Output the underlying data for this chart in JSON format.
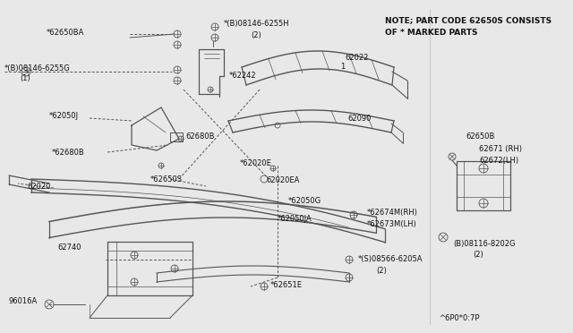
{
  "background_color": "#e8e8e8",
  "line_color": "#555555",
  "text_color": "#111111",
  "note_line1": "NOTE; PART CODE 62650S CONSISTS",
  "note_line2": "OF * MARKED PARTS",
  "footer_text": "^6P0*0:7P",
  "fig_width": 6.4,
  "fig_height": 3.72,
  "dpi": 100
}
